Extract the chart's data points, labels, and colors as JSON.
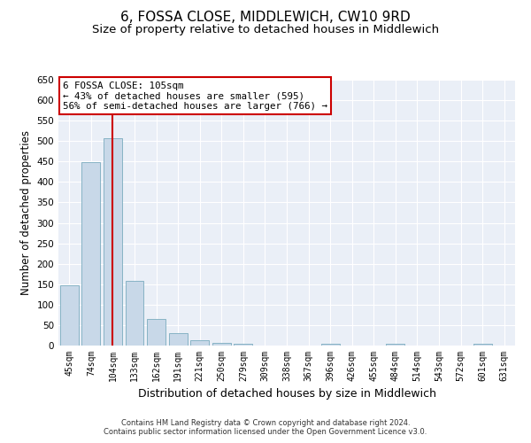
{
  "title": "6, FOSSA CLOSE, MIDDLEWICH, CW10 9RD",
  "subtitle": "Size of property relative to detached houses in Middlewich",
  "xlabel": "Distribution of detached houses by size in Middlewich",
  "ylabel": "Number of detached properties",
  "categories": [
    "45sqm",
    "74sqm",
    "104sqm",
    "133sqm",
    "162sqm",
    "191sqm",
    "221sqm",
    "250sqm",
    "279sqm",
    "309sqm",
    "338sqm",
    "367sqm",
    "396sqm",
    "426sqm",
    "455sqm",
    "484sqm",
    "514sqm",
    "543sqm",
    "572sqm",
    "601sqm",
    "631sqm"
  ],
  "values": [
    148,
    449,
    507,
    158,
    65,
    30,
    12,
    7,
    5,
    0,
    0,
    0,
    5,
    0,
    0,
    5,
    0,
    0,
    0,
    5,
    0
  ],
  "bar_color": "#c8d8e8",
  "bar_edge_color": "#7aabbf",
  "vline_x": 2,
  "vline_color": "#cc0000",
  "annotation_text": "6 FOSSA CLOSE: 105sqm\n← 43% of detached houses are smaller (595)\n56% of semi-detached houses are larger (766) →",
  "annotation_box_color": "#ffffff",
  "annotation_box_edge_color": "#cc0000",
  "ylim": [
    0,
    650
  ],
  "yticks": [
    0,
    50,
    100,
    150,
    200,
    250,
    300,
    350,
    400,
    450,
    500,
    550,
    600,
    650
  ],
  "background_color": "#eaeff7",
  "grid_color": "#ffffff",
  "footer_text": "Contains HM Land Registry data © Crown copyright and database right 2024.\nContains public sector information licensed under the Open Government Licence v3.0.",
  "title_fontsize": 11,
  "subtitle_fontsize": 9.5,
  "xlabel_fontsize": 9,
  "ylabel_fontsize": 8.5,
  "tick_fontsize": 7,
  "ytick_fontsize": 7.5
}
